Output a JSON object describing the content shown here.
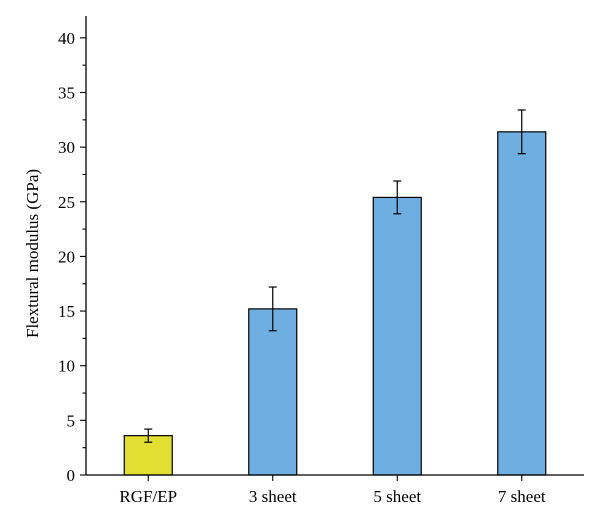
{
  "chart_data": {
    "type": "bar",
    "title": "",
    "xlabel": "",
    "ylabel": "Flextural modulus (GPa)",
    "categories": [
      "RGF/EP",
      "3 sheet",
      "5 sheet",
      "7 sheet"
    ],
    "values": [
      3.6,
      15.2,
      25.4,
      31.4
    ],
    "errors": [
      0.6,
      2.0,
      1.5,
      2.0
    ],
    "colors": [
      "#e2de32",
      "#6faee0",
      "#6faee0",
      "#6faee0"
    ],
    "ylim": [
      0,
      42
    ],
    "yticks": [
      0,
      5,
      10,
      15,
      20,
      25,
      30,
      35,
      40
    ],
    "grid": false,
    "legend": "none"
  }
}
